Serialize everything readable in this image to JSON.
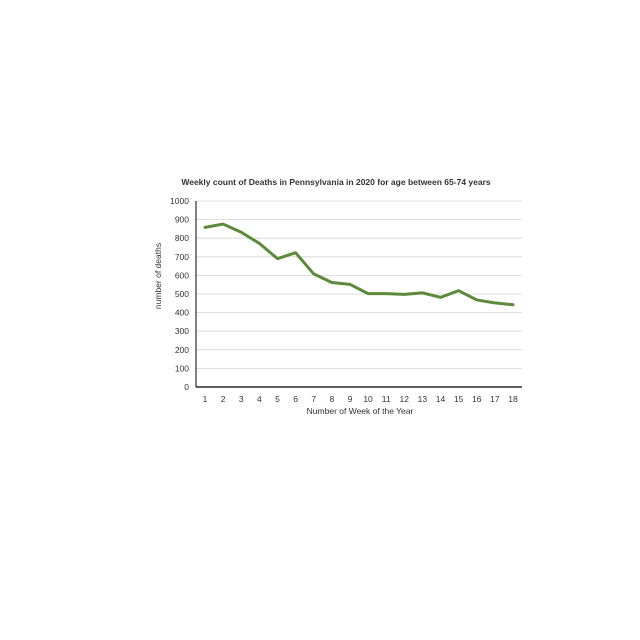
{
  "chart_data": {
    "type": "line",
    "title": "Weekly count of Deaths in Pennsylvania in 2020 for age between 65-74 years",
    "xlabel": "Number of Week of the Year",
    "ylabel": "number of deaths",
    "x": [
      1,
      2,
      3,
      4,
      5,
      6,
      7,
      8,
      9,
      10,
      11,
      12,
      13,
      14,
      15,
      16,
      17,
      18
    ],
    "series": [
      {
        "values": [
          858,
          876,
          832,
          772,
          690,
          722,
          608,
          562,
          552,
          502,
          502,
          498,
          506,
          482,
          518,
          468,
          452,
          442
        ],
        "color": "#5b8a3a"
      }
    ],
    "ylim": [
      0,
      1000
    ],
    "yticks": [
      0,
      100,
      200,
      300,
      400,
      500,
      600,
      700,
      800,
      900,
      1000
    ],
    "grid": true,
    "legend": "none"
  }
}
